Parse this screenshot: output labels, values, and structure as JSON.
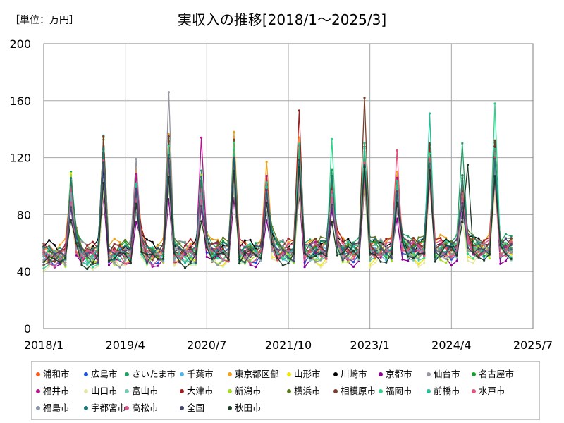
{
  "chart_data": {
    "type": "line",
    "title": "実収入の推移[2018/1～2025/3]",
    "unit_label": "［単位：万円］",
    "xlabel": "",
    "ylabel": "",
    "ylim": [
      0,
      200
    ],
    "yticks": [
      0,
      40,
      80,
      120,
      160,
      200
    ],
    "x_start": "2018-01",
    "x_end": "2025-07",
    "xticks": [
      {
        "label": "2018/1",
        "date": "2018-01"
      },
      {
        "label": "2019/4",
        "date": "2019-04"
      },
      {
        "label": "2020/7",
        "date": "2020-07"
      },
      {
        "label": "2021/10",
        "date": "2021-10"
      },
      {
        "label": "2023/1",
        "date": "2023-01"
      },
      {
        "label": "2024/4",
        "date": "2024-04"
      },
      {
        "label": "2025/7",
        "date": "2025-07"
      }
    ],
    "grid": true,
    "legend_position": "bottom",
    "highlights": {
      "2018-06": [
        {
          "series": "山形市",
          "value": 109
        }
      ],
      "2018-12": [
        {
          "series": "仙台市",
          "value": 128
        }
      ],
      "2019-06": [
        {
          "series": "仙台市",
          "value": 119
        }
      ],
      "2019-12": [
        {
          "series": "仙台市",
          "value": 166
        }
      ],
      "2020-06": [
        {
          "series": "福井市",
          "value": 134
        }
      ],
      "2020-12": [
        {
          "series": "東京都区部",
          "value": 138
        }
      ],
      "2021-06": [
        {
          "series": "東京都区部",
          "value": 117
        }
      ],
      "2021-12": [
        {
          "series": "大津市",
          "value": 153
        }
      ],
      "2022-06": [
        {
          "series": "福岡市",
          "value": 133
        }
      ],
      "2022-12": [
        {
          "series": "相模原市",
          "value": 162
        }
      ],
      "2023-06": [
        {
          "series": "水戸市",
          "value": 125
        }
      ],
      "2023-12": [
        {
          "series": "前橋市",
          "value": 151
        }
      ],
      "2024-06": [
        {
          "series": "さいたま市",
          "value": 130
        }
      ],
      "2024-07": [
        {
          "series": "秋田市",
          "value": 115
        }
      ],
      "2024-12": [
        {
          "series": "福岡市",
          "value": 158
        }
      ]
    },
    "series": [
      {
        "name": "浦和市",
        "color": "#ff5a1e",
        "base": 52,
        "dec": 2.1,
        "jun": 1.8
      },
      {
        "name": "広島市",
        "color": "#1e50dc",
        "base": 50,
        "dec": 2.3,
        "jun": 1.9
      },
      {
        "name": "さいたま市",
        "color": "#1ea064",
        "base": 55,
        "dec": 2.4,
        "jun": 1.9
      },
      {
        "name": "千葉市",
        "color": "#50b4e6",
        "base": 51,
        "dec": 2.5,
        "jun": 1.8
      },
      {
        "name": "東京都区部",
        "color": "#f0a01e",
        "base": 56,
        "dec": 2.3,
        "jun": 1.9
      },
      {
        "name": "山形市",
        "color": "#f0e600",
        "base": 48,
        "dec": 2.2,
        "jun": 2.0
      },
      {
        "name": "川崎市",
        "color": "#000000",
        "base": 55,
        "dec": 2.2,
        "jun": 1.7
      },
      {
        "name": "京都市",
        "color": "#8c0096",
        "base": 47,
        "dec": 2.1,
        "jun": 1.7
      },
      {
        "name": "仙台市",
        "color": "#9696a0",
        "base": 54,
        "dec": 2.3,
        "jun": 1.8
      },
      {
        "name": "名古屋市",
        "color": "#14a028",
        "base": 53,
        "dec": 2.4,
        "jun": 1.9
      },
      {
        "name": "福井市",
        "color": "#b4148c",
        "base": 52,
        "dec": 2.2,
        "jun": 2.0
      },
      {
        "name": "山口市",
        "color": "#e6e6aa",
        "base": 46,
        "dec": 2.1,
        "jun": 1.8
      },
      {
        "name": "富山市",
        "color": "#78c8b4",
        "base": 50,
        "dec": 2.2,
        "jun": 1.9
      },
      {
        "name": "大津市",
        "color": "#a01e1e",
        "base": 54,
        "dec": 2.3,
        "jun": 1.8
      },
      {
        "name": "新潟市",
        "color": "#a0dc1e",
        "base": 48,
        "dec": 2.2,
        "jun": 2.1
      },
      {
        "name": "横浜市",
        "color": "#5a781e",
        "base": 55,
        "dec": 2.3,
        "jun": 1.8
      },
      {
        "name": "相模原市",
        "color": "#783c28",
        "base": 53,
        "dec": 2.4,
        "jun": 1.8
      },
      {
        "name": "福岡市",
        "color": "#32d28c",
        "base": 49,
        "dec": 2.5,
        "jun": 1.9
      },
      {
        "name": "前橋市",
        "color": "#1ebe96",
        "base": 51,
        "dec": 2.4,
        "jun": 1.9
      },
      {
        "name": "水戸市",
        "color": "#e65078",
        "base": 51,
        "dec": 2.2,
        "jun": 1.9
      },
      {
        "name": "福島市",
        "color": "#8c96aa",
        "base": 49,
        "dec": 2.2,
        "jun": 1.8
      },
      {
        "name": "宇都宮市",
        "color": "#1e7878",
        "base": 53,
        "dec": 2.3,
        "jun": 1.9
      },
      {
        "name": "高松市",
        "color": "#d25a8c",
        "base": 50,
        "dec": 2.2,
        "jun": 1.8
      },
      {
        "name": "全国",
        "color": "#46466e",
        "base": 51,
        "dec": 2.2,
        "jun": 1.8
      },
      {
        "name": "秋田市",
        "color": "#1e3c28",
        "base": 48,
        "dec": 2.2,
        "jun": 1.7
      }
    ]
  }
}
